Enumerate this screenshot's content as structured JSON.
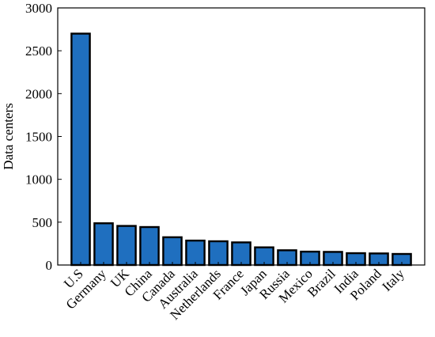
{
  "chart_data": {
    "type": "bar",
    "title": "",
    "xlabel": "",
    "ylabel": "Data centers",
    "ylim": [
      0,
      3000
    ],
    "yticks": [
      0,
      500,
      1000,
      1500,
      2000,
      2500,
      3000
    ],
    "grid": false,
    "bar_color": "#1f6fbf",
    "categories": [
      "U.S",
      "Germany",
      "UK",
      "China",
      "Canada",
      "Australia",
      "Netherlands",
      "France",
      "Japan",
      "Russia",
      "Mexico",
      "Brazil",
      "India",
      "Poland",
      "Italy"
    ],
    "values": [
      2700,
      487,
      456,
      443,
      324,
      285,
      277,
      264,
      206,
      172,
      156,
      153,
      138,
      135,
      129
    ]
  }
}
